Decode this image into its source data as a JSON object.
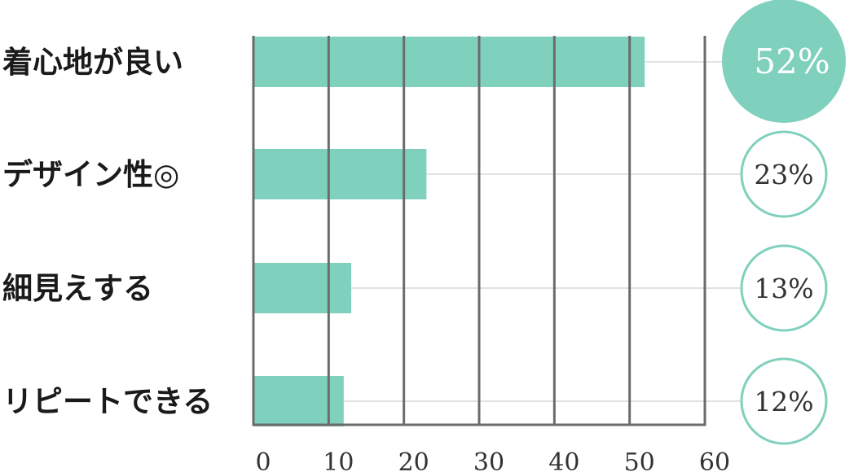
{
  "chart_data": {
    "type": "bar",
    "orientation": "horizontal",
    "categories": [
      "着心地が良い",
      "デザイン性◎",
      "細見えする",
      "リピートできる"
    ],
    "values": [
      52,
      23,
      13,
      12
    ],
    "value_labels": [
      "52%",
      "23%",
      "13%",
      "12%"
    ],
    "xlim": [
      0,
      60
    ],
    "xticks": [
      "0",
      "10",
      "20",
      "30",
      "40",
      "50",
      "60"
    ],
    "grid": true,
    "highlight_index": 0,
    "colors": {
      "bar": "#7fd0bd",
      "circle_stroke": "#7fd0bd",
      "highlight_fill": "#7fd0bd",
      "axis": "#6b6b6b",
      "leader": "#d9d9d9"
    }
  }
}
